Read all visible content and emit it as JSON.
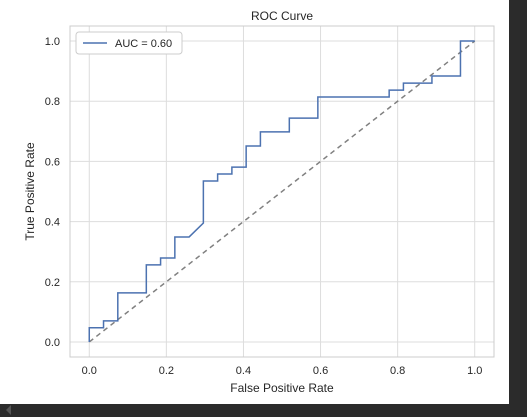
{
  "chart_data": {
    "type": "line",
    "title": "ROC Curve",
    "xlabel": "False Positive Rate",
    "ylabel": "True Positive Rate",
    "xlim": [
      -0.05,
      1.05
    ],
    "ylim": [
      -0.05,
      1.05
    ],
    "x_ticks": [
      "0.0",
      "0.2",
      "0.4",
      "0.6",
      "0.8",
      "1.0"
    ],
    "y_ticks": [
      "0.0",
      "0.2",
      "0.4",
      "0.6",
      "0.8",
      "1.0"
    ],
    "grid": true,
    "legend_position": "top-left",
    "series": [
      {
        "name": "AUC = 0.60",
        "color": "#4c72b0",
        "style": "solid",
        "x": [
          0.0,
          0.0,
          0.037,
          0.037,
          0.074,
          0.074,
          0.148,
          0.148,
          0.185,
          0.185,
          0.222,
          0.222,
          0.259,
          0.296,
          0.296,
          0.333,
          0.333,
          0.37,
          0.37,
          0.407,
          0.407,
          0.444,
          0.444,
          0.519,
          0.519,
          0.593,
          0.593,
          0.778,
          0.778,
          0.815,
          0.815,
          0.889,
          0.889,
          0.963,
          0.963,
          1.0
        ],
        "y": [
          0.0,
          0.047,
          0.047,
          0.07,
          0.07,
          0.163,
          0.163,
          0.256,
          0.256,
          0.279,
          0.279,
          0.349,
          0.349,
          0.395,
          0.535,
          0.535,
          0.558,
          0.558,
          0.581,
          0.581,
          0.651,
          0.651,
          0.698,
          0.698,
          0.744,
          0.744,
          0.814,
          0.814,
          0.837,
          0.837,
          0.86,
          0.86,
          0.884,
          0.884,
          1.0,
          1.0
        ]
      },
      {
        "name": "",
        "color": "#808080",
        "style": "dashed",
        "x": [
          0.0,
          1.0
        ],
        "y": [
          0.0,
          1.0
        ]
      }
    ]
  }
}
